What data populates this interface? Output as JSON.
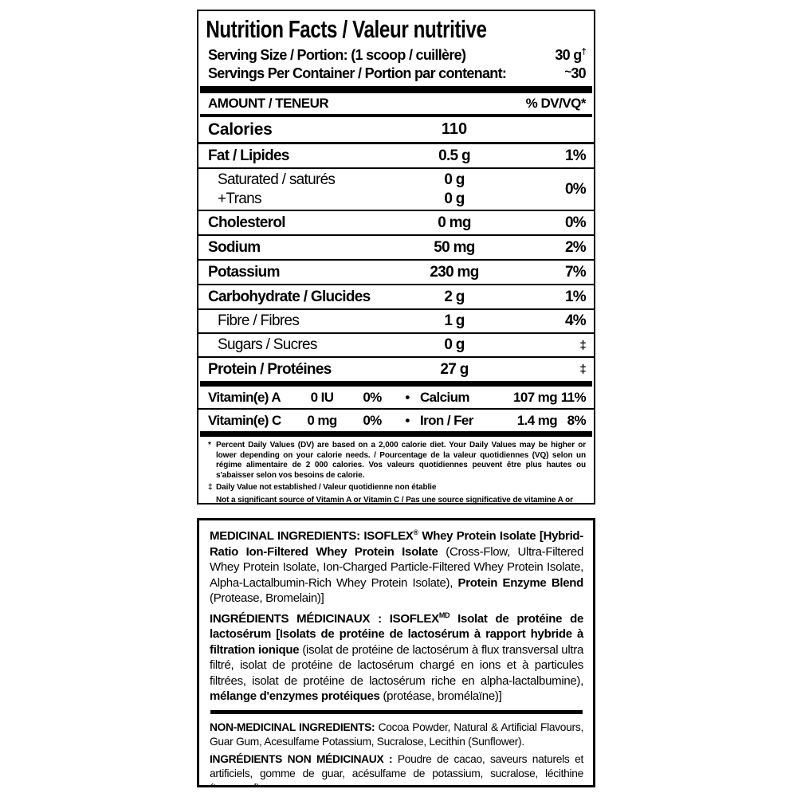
{
  "nutrition_panel": {
    "title": "Nutrition Facts / Valeur nutritive",
    "serving_size": {
      "label": "Serving Size / Portion: (1 scoop / cuillère)",
      "value": "30 g",
      "sup": "†"
    },
    "servings_per_container": {
      "label": "Servings Per Container / Portion par contenant:",
      "prefix": "~",
      "value": "30"
    },
    "column_header": {
      "left": "AMOUNT / TENEUR",
      "right": "% DV/VQ*"
    },
    "calories": {
      "label": "Calories",
      "value": "110"
    },
    "rows": [
      {
        "label": "Fat / Lipides",
        "amount": "0.5 g",
        "dv": "1%"
      },
      {
        "labels": [
          "Saturated / saturés",
          "+Trans"
        ],
        "amounts": [
          "0 g",
          "0 g"
        ],
        "dv": "0%"
      },
      {
        "label": "Cholesterol",
        "amount": "0 mg",
        "dv": "0%"
      },
      {
        "label": "Sodium",
        "amount": "50 mg",
        "dv": "2%"
      },
      {
        "label": "Potassium",
        "amount": "230 mg",
        "dv": "7%"
      },
      {
        "label": "Carbohydrate / Glucides",
        "amount": "2 g",
        "dv": "1%"
      },
      {
        "label": "Fibre / Fibres",
        "amount": "1 g",
        "dv": "4%"
      },
      {
        "label": "Sugars / Sucres",
        "amount": "0 g",
        "dv": "‡"
      },
      {
        "label": "Protein / Protéines",
        "amount": "27 g",
        "dv": "‡"
      }
    ],
    "micronutrients": [
      {
        "name": "Vitamin(e) A",
        "amount": "0 IU",
        "dv": "0%",
        "bullet": "•",
        "name2": "Calcium",
        "amount2": "107 mg",
        "dv2": "11%"
      },
      {
        "name": "Vitamin(e) C",
        "amount": "0 mg",
        "dv": "0%",
        "bullet": "•",
        "name2": "Iron / Fer",
        "amount2": "1.4 mg",
        "dv2": "8%"
      }
    ],
    "footnotes": [
      {
        "marker": "*",
        "text": "Percent Daily Values (DV) are based on a 2,000 calorie diet. Your Daily Values may be higher or lower depending on your calorie needs. / Pourcentage de la valeur quotidiennes (VQ) selon un régime alimentaire de 2 000 calories. Vos valeurs quotidiennes peuvent être plus hautes ou s'abaisser selon vos besoins de calorie."
      },
      {
        "marker": "‡",
        "text": "Daily Value not established / Valeur quotidienne non établie"
      },
      {
        "marker": "",
        "text": "Not a significant source of Vitamin A or Vitamin C / Pas une source significative de vitamine A or vitamine C"
      }
    ]
  },
  "ingredients_panel": {
    "medicinal_en": {
      "segments": [
        {
          "text": "MEDICINAL INGREDIENTS: ISOFLEX",
          "style": "bold"
        },
        {
          "text": "®",
          "style": "bold-sup"
        },
        {
          "text": " Whey Protein Isolate [Hybrid-Ratio Ion-Filtered Whey Protein Isolate ",
          "style": "bold"
        },
        {
          "text": "(Cross-Flow, Ultra-Filtered Whey Protein Isolate, Ion-Charged Particle-Filtered Whey Protein Isolate, Alpha-Lactalbumin-Rich Whey Protein Isolate), ",
          "style": "regular"
        },
        {
          "text": "Protein Enzyme Blend ",
          "style": "bold"
        },
        {
          "text": "(Protease, Bromelain)]",
          "style": "regular"
        }
      ]
    },
    "medicinal_fr": {
      "segments": [
        {
          "text": "INGRÉDIENTS MÉDICINAUX : ISOFLEX",
          "style": "bold"
        },
        {
          "text": "MD",
          "style": "bold-sup"
        },
        {
          "text": " Isolat de protéine de lactosérum [Isolats de protéine de lactosérum à rapport hybride à filtration ionique ",
          "style": "bold"
        },
        {
          "text": "(isolat de protéine de lactosérum à flux transversal ultra filtré, isolat de protéine de lactosérum chargé en ions et à particules filtrées, isolat de protéine de lactosérum riche en alpha-lactalbumine), ",
          "style": "regular"
        },
        {
          "text": "mélange d'enzymes protéiques ",
          "style": "bold"
        },
        {
          "text": "(protéase, bromélaïne)]",
          "style": "regular"
        }
      ]
    },
    "non_medicinal_en": {
      "segments": [
        {
          "text": "NON-MEDICINAL INGREDIENTS: ",
          "style": "bold"
        },
        {
          "text": "Cocoa Powder, Natural & Artificial Flavours, Guar Gum, Acesulfame Potassium, Sucralose, Lecithin (Sunflower).",
          "style": "regular"
        }
      ]
    },
    "non_medicinal_fr": {
      "segments": [
        {
          "text": "INGRÉDIENTS NON MÉDICINAUX : ",
          "style": "bold"
        },
        {
          "text": "Poudre de cacao, saveurs naturels et artificiels, gomme de guar, acésulfame de potassium, sucralose, lécithine (tournesol).",
          "style": "regular"
        }
      ]
    }
  },
  "colors": {
    "ink": "#000000",
    "background": "#ffffff"
  }
}
